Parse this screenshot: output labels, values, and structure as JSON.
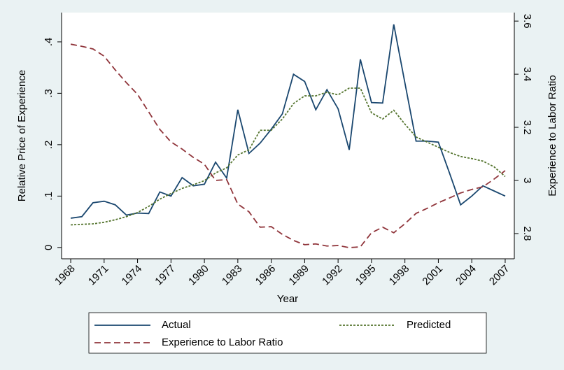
{
  "chart_data": {
    "type": "line",
    "x_label": "Year",
    "y_label": "Relative Price of Experience",
    "y2_label": "Experience to Labor Ratio",
    "x": [
      1968,
      1969,
      1970,
      1971,
      1972,
      1973,
      1974,
      1975,
      1976,
      1977,
      1978,
      1979,
      1980,
      1981,
      1982,
      1983,
      1984,
      1985,
      1986,
      1987,
      1988,
      1989,
      1990,
      1991,
      1992,
      1993,
      1994,
      1995,
      1996,
      1997,
      1998,
      1999,
      2000,
      2001,
      2002,
      2003,
      2004,
      2005,
      2006,
      2007
    ],
    "xlim": [
      1967.18,
      2007.82
    ],
    "xticks": [
      1968,
      1971,
      1974,
      1977,
      1980,
      1983,
      1986,
      1989,
      1992,
      1995,
      1998,
      2001,
      2004,
      2007
    ],
    "ylim": [
      -0.022,
      0.457
    ],
    "yticks": [
      0,
      {
        "value": 0.1,
        "label": ".1"
      },
      {
        "value": 0.2,
        "label": ".2"
      },
      {
        "value": 0.3,
        "label": ".3"
      },
      {
        "value": 0.4,
        "label": ".4"
      }
    ],
    "y2lim": [
      2.705,
      3.632
    ],
    "y2ticks": [
      2.8,
      3,
      3.2,
      3.4,
      3.6
    ],
    "series": [
      {
        "name": "Actual",
        "color": "#1a476f",
        "dash": "solid",
        "values": [
          0.057,
          0.06,
          0.087,
          0.09,
          0.083,
          0.063,
          0.067,
          0.066,
          0.108,
          0.1,
          0.136,
          0.12,
          0.123,
          0.166,
          0.135,
          0.268,
          0.183,
          0.203,
          0.23,
          0.26,
          0.337,
          0.323,
          0.268,
          0.307,
          0.27,
          0.19,
          0.366,
          0.282,
          0.281,
          0.434,
          0.32,
          0.207,
          0.207,
          0.205,
          0.145,
          0.083,
          0.1,
          0.12,
          0.11,
          0.1
        ]
      },
      {
        "name": "Predicted",
        "color": "#55752f",
        "dash": "dotted",
        "values": [
          0.044,
          0.045,
          0.046,
          0.049,
          0.054,
          0.06,
          0.068,
          0.08,
          0.094,
          0.105,
          0.115,
          0.122,
          0.13,
          0.145,
          0.155,
          0.18,
          0.19,
          0.228,
          0.228,
          0.25,
          0.28,
          0.295,
          0.295,
          0.302,
          0.297,
          0.31,
          0.31,
          0.262,
          0.25,
          0.267,
          0.24,
          0.215,
          0.205,
          0.195,
          0.185,
          0.177,
          0.173,
          0.168,
          0.157,
          0.138
        ]
      },
      {
        "name": "Experience to Labor Ratio",
        "color": "#90353b",
        "dash": "dashed",
        "axis": "y2",
        "values": [
          3.513,
          3.505,
          3.495,
          3.468,
          3.416,
          3.368,
          3.324,
          3.258,
          3.192,
          3.145,
          3.118,
          3.087,
          3.061,
          3.0,
          3.003,
          2.911,
          2.882,
          2.824,
          2.826,
          2.797,
          2.774,
          2.758,
          2.761,
          2.753,
          2.755,
          2.747,
          2.75,
          2.803,
          2.824,
          2.803,
          2.837,
          2.876,
          2.895,
          2.916,
          2.934,
          2.953,
          2.966,
          2.976,
          3.005,
          3.037
        ]
      }
    ]
  }
}
